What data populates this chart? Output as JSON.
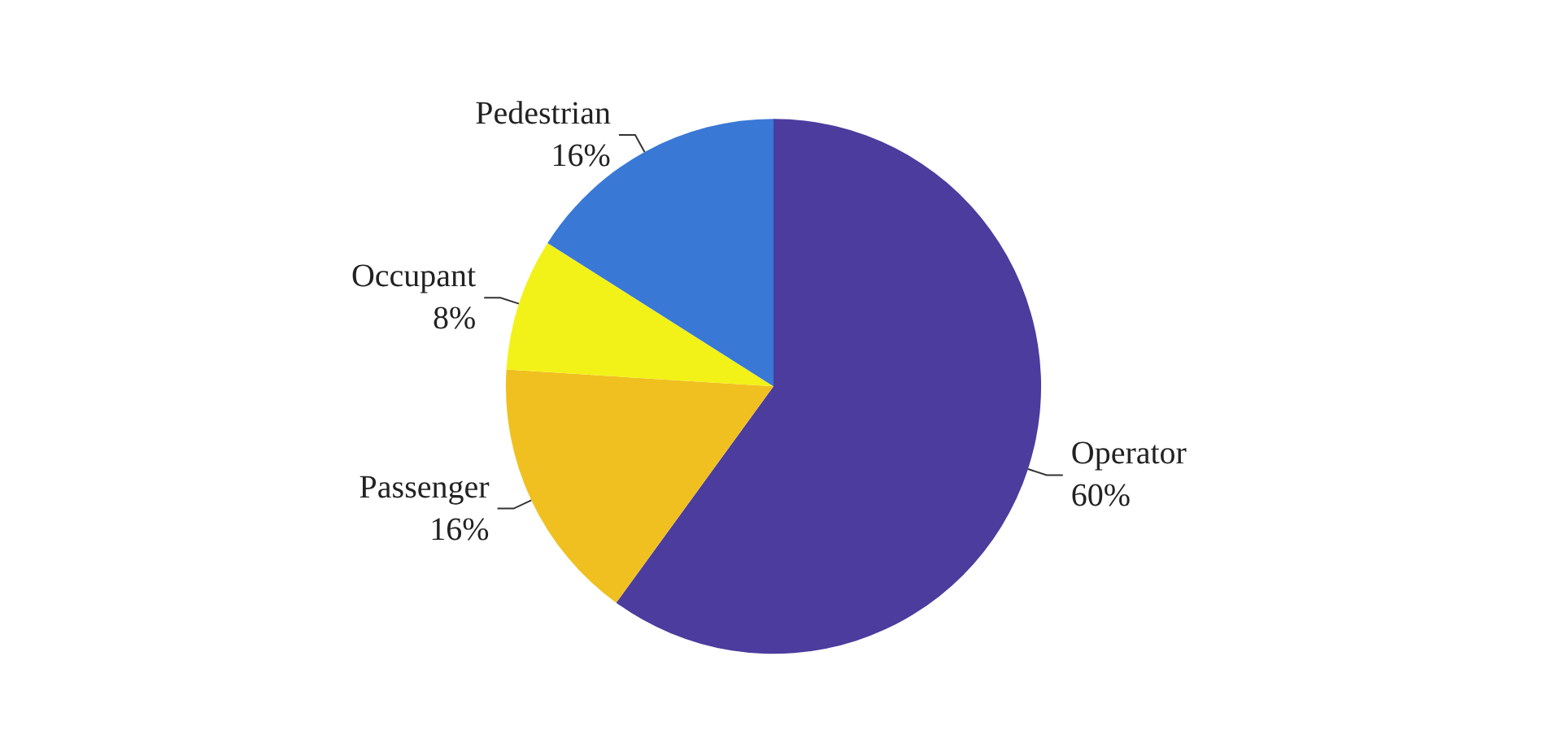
{
  "chart_data": {
    "type": "pie",
    "categories": [
      "Operator",
      "Passenger",
      "Occupant",
      "Pedestrian"
    ],
    "values": [
      60,
      16,
      8,
      16
    ],
    "colors": [
      "#4b3c9e",
      "#f0c020",
      "#f2f218",
      "#3a78d6"
    ],
    "value_labels": [
      "60%",
      "16%",
      "8%",
      "16%"
    ]
  }
}
